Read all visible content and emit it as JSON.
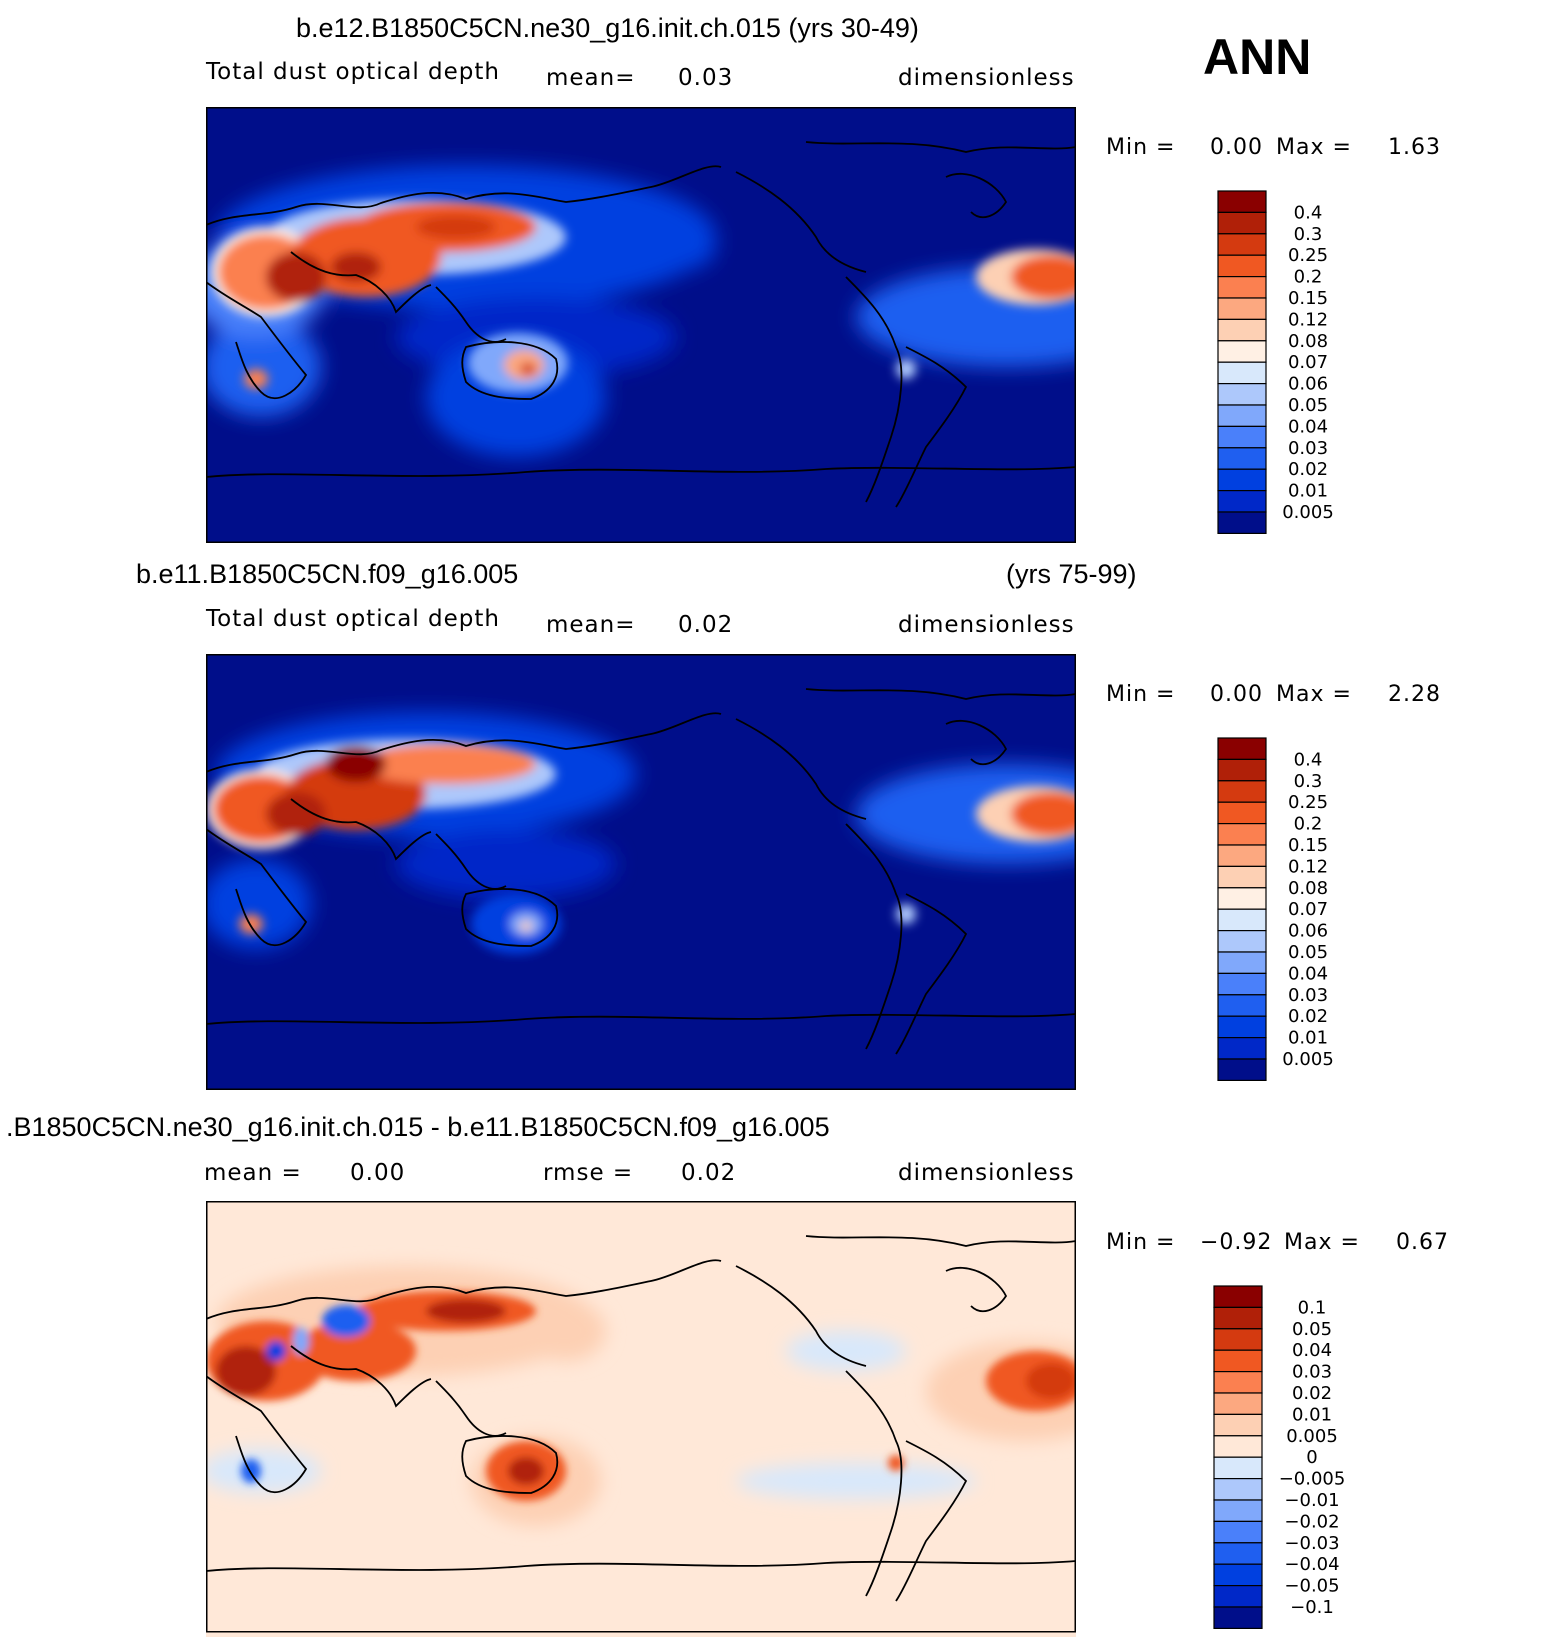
{
  "ann_label": "ANN",
  "colors": {
    "abs": [
      "#000e8a",
      "#0028c8",
      "#0040e0",
      "#1f5ff0",
      "#4a80fa",
      "#80a8fb",
      "#adc8fb",
      "#d8e8fb",
      "#fff0e4",
      "#fdd0b4",
      "#fca880",
      "#fb8050",
      "#f05822",
      "#d43a10",
      "#b02008",
      "#8a0000"
    ],
    "diff": [
      "#000e8a",
      "#0028c8",
      "#0040e0",
      "#1f5ff0",
      "#4a80fa",
      "#80a8fb",
      "#adc8fb",
      "#d8e8fb",
      "#ffe8d8",
      "#fdd0b4",
      "#fca880",
      "#fb8050",
      "#f05822",
      "#d43a10",
      "#b02008",
      "#8a0000"
    ],
    "ocean_abs": "#000e8a",
    "ocean_diff": "#ffe8d8"
  },
  "panels": [
    {
      "title_left": "b.e12.B1850C5CN.ne30_g16.init.ch.015 (yrs 30-49)",
      "title_right": "",
      "sub_left": "Total dust optical depth",
      "sub_mid": "mean=",
      "sub_mid_val": "0.03",
      "sub_right": "dimensionless",
      "min_label": "Min =",
      "min_val": "0.00",
      "max_label": "Max =",
      "max_val": "1.63",
      "colorbar_labels": [
        "0.4",
        "0.3",
        "0.25",
        "0.2",
        "0.15",
        "0.12",
        "0.08",
        "0.07",
        "0.06",
        "0.05",
        "0.04",
        "0.03",
        "0.02",
        "0.01",
        "0.005"
      ]
    },
    {
      "title_left": "b.e11.B1850C5CN.f09_g16.005",
      "title_right": "(yrs 75-99)",
      "sub_left": "Total dust optical depth",
      "sub_mid": "mean=",
      "sub_mid_val": "0.02",
      "sub_right": "dimensionless",
      "min_label": "Min =",
      "min_val": "0.00",
      "max_label": "Max =",
      "max_val": "2.28",
      "colorbar_labels": [
        "0.4",
        "0.3",
        "0.25",
        "0.2",
        "0.15",
        "0.12",
        "0.08",
        "0.07",
        "0.06",
        "0.05",
        "0.04",
        "0.03",
        "0.02",
        "0.01",
        "0.005"
      ]
    },
    {
      "title_left": ".B1850C5CN.ne30_g16.init.ch.015 - b.e11.B1850C5CN.f09_g16.005",
      "title_right": "",
      "sub_left": "mean =",
      "sub_left_val": "0.00",
      "sub_mid": "rmse =",
      "sub_mid_val": "0.02",
      "sub_right": "dimensionless",
      "min_label": "Min =",
      "min_val": "−0.92",
      "max_label": "Max =",
      "max_val": "0.67",
      "colorbar_labels": [
        "0.1",
        "0.05",
        "0.04",
        "0.03",
        "0.02",
        "0.01",
        "0.005",
        "0",
        "−0.005",
        "−0.01",
        "−0.02",
        "−0.03",
        "−0.04",
        "−0.05",
        "−0.1"
      ]
    }
  ]
}
